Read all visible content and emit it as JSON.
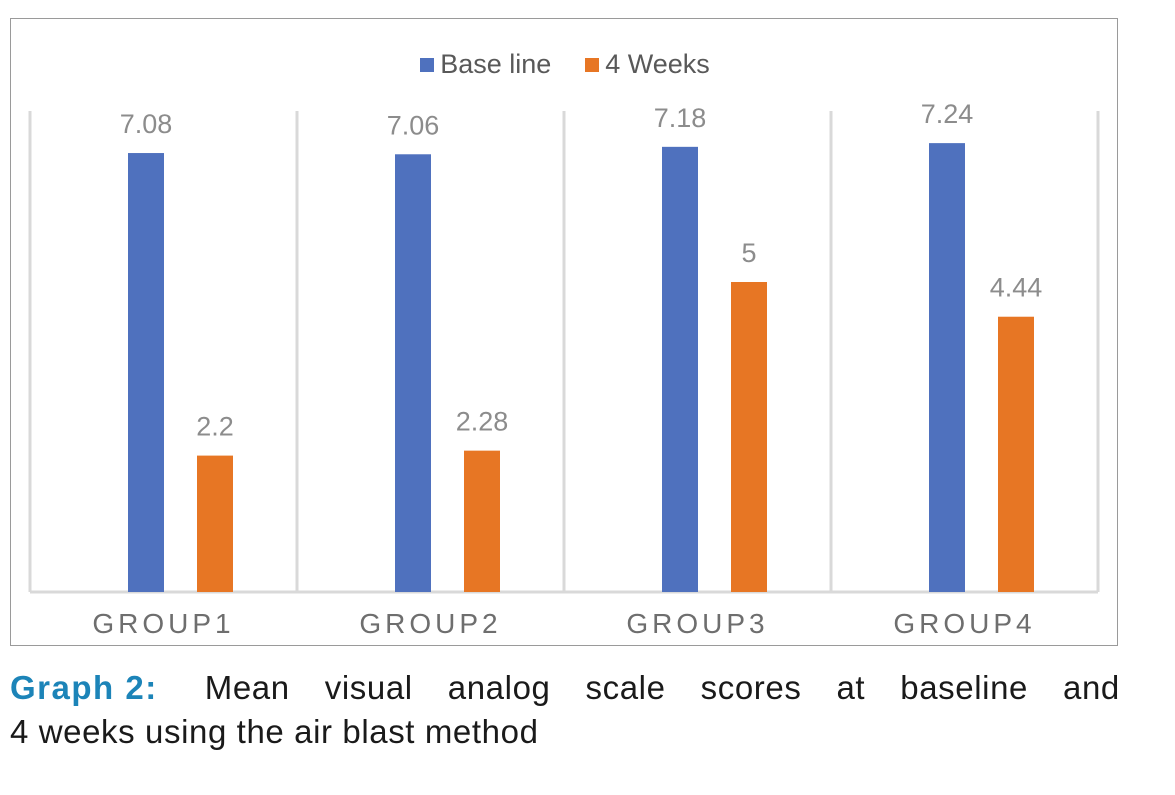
{
  "chart_data": {
    "type": "bar",
    "categories": [
      "GROUP1",
      "GROUP2",
      "GROUP3",
      "GROUP4"
    ],
    "series": [
      {
        "name": "Base line",
        "color": "#4f71be",
        "values": [
          7.08,
          7.06,
          7.18,
          7.24
        ]
      },
      {
        "name": "4 Weeks",
        "color": "#e77624",
        "values": [
          2.2,
          2.28,
          5,
          4.44
        ]
      }
    ],
    "value_labels": [
      [
        "7.08",
        "7.06",
        "7.18",
        "7.24"
      ],
      [
        "2.2",
        "2.28",
        "5",
        "4.44"
      ]
    ],
    "title": "",
    "xlabel": "",
    "ylabel": "",
    "ylim": [
      0,
      8
    ],
    "grid": "vertical category separators",
    "legend_position": "top-center"
  },
  "caption": {
    "label": "Graph 2:",
    "line1_words": [
      "Mean",
      "visual",
      "analog",
      "scale",
      "scores",
      "at",
      "baseline",
      "and"
    ],
    "line2": "4 weeks using the air blast method"
  }
}
